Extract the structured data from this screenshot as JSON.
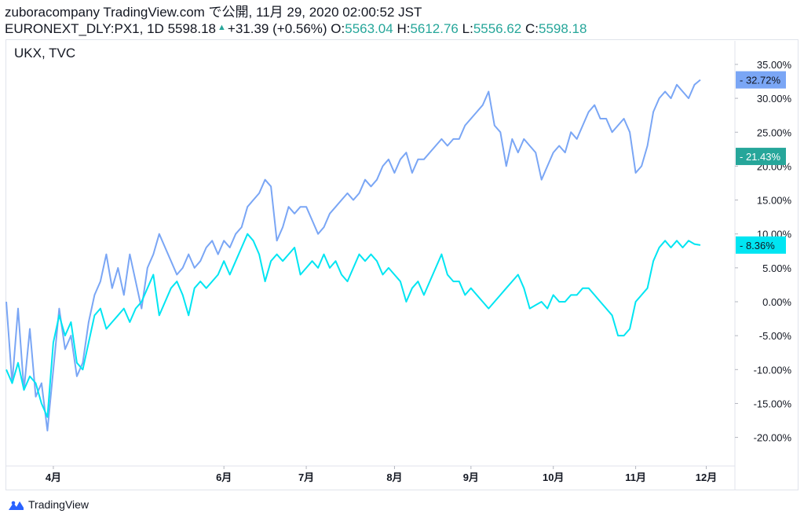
{
  "header": {
    "line1": "zuboracompany TradingView.com で公開, 11月 29, 2020 02:00:52 JST",
    "symbol": "EURONEXT_DLY:PX1, 1D",
    "last": "5598.18",
    "arrow": "▲",
    "change": "+31.39 (+0.56%)",
    "o_label": "O:",
    "o": "5563.04",
    "h_label": "H:",
    "h": "5612.76",
    "l_label": "L:",
    "l": "5556.62",
    "c_label": "C:",
    "c": "5598.18"
  },
  "compare_symbols": "UKX, TVC",
  "footer": {
    "brand": "TradingView"
  },
  "chart_data": {
    "type": "line",
    "ylabel_format": "percent",
    "ylim": [
      -23,
      38
    ],
    "y_ticks": [
      "35.00%",
      "30.00%",
      "25.00%",
      "20.00%",
      "15.00%",
      "10.00%",
      "5.00%",
      "0.00%",
      "-5.00%",
      "-10.00%",
      "-15.00%",
      "-20.00%"
    ],
    "x_ticks": [
      "4月",
      "6月",
      "7月",
      "8月",
      "9月",
      "10月",
      "11月",
      "12月"
    ],
    "grid": false,
    "series": [
      {
        "color": "#7aa6f5",
        "last_label": "32.72%",
        "points": [
          [
            1,
            0
          ],
          [
            2,
            -12
          ],
          [
            3,
            -1
          ],
          [
            4,
            -13
          ],
          [
            5,
            -4
          ],
          [
            6,
            -14
          ],
          [
            7,
            -12
          ],
          [
            8,
            -19
          ],
          [
            9,
            -10
          ],
          [
            10,
            -1
          ],
          [
            11,
            -7
          ],
          [
            12,
            -5
          ],
          [
            13,
            -11
          ],
          [
            14,
            -9
          ],
          [
            15,
            -3
          ],
          [
            16,
            1
          ],
          [
            17,
            3
          ],
          [
            18,
            7
          ],
          [
            19,
            2
          ],
          [
            20,
            5
          ],
          [
            21,
            1
          ],
          [
            22,
            7
          ],
          [
            23,
            3
          ],
          [
            24,
            -1
          ],
          [
            25,
            5
          ],
          [
            26,
            7
          ],
          [
            27,
            10
          ],
          [
            28,
            8
          ],
          [
            29,
            6
          ],
          [
            30,
            4
          ],
          [
            31,
            5
          ],
          [
            32,
            7
          ],
          [
            33,
            5
          ],
          [
            34,
            6
          ],
          [
            35,
            8
          ],
          [
            36,
            9
          ],
          [
            37,
            7
          ],
          [
            38,
            9
          ],
          [
            39,
            8
          ],
          [
            40,
            10
          ],
          [
            41,
            11
          ],
          [
            42,
            14
          ],
          [
            43,
            15
          ],
          [
            44,
            16
          ],
          [
            45,
            18
          ],
          [
            46,
            17
          ],
          [
            47,
            9
          ],
          [
            48,
            11
          ],
          [
            49,
            14
          ],
          [
            50,
            13
          ],
          [
            51,
            14
          ],
          [
            52,
            14
          ],
          [
            53,
            12
          ],
          [
            54,
            10
          ],
          [
            55,
            11
          ],
          [
            56,
            13
          ],
          [
            57,
            14
          ],
          [
            58,
            15
          ],
          [
            59,
            16
          ],
          [
            60,
            15
          ],
          [
            61,
            16
          ],
          [
            62,
            18
          ],
          [
            63,
            17
          ],
          [
            64,
            18
          ],
          [
            65,
            20
          ],
          [
            66,
            21
          ],
          [
            67,
            19
          ],
          [
            68,
            21
          ],
          [
            69,
            22
          ],
          [
            70,
            19
          ],
          [
            71,
            21
          ],
          [
            72,
            21
          ],
          [
            73,
            22
          ],
          [
            74,
            23
          ],
          [
            75,
            24
          ],
          [
            76,
            23
          ],
          [
            77,
            24
          ],
          [
            78,
            24
          ],
          [
            79,
            26
          ],
          [
            80,
            27
          ],
          [
            81,
            28
          ],
          [
            82,
            29
          ],
          [
            83,
            31
          ],
          [
            84,
            26
          ],
          [
            85,
            25
          ],
          [
            86,
            20
          ],
          [
            87,
            24
          ],
          [
            88,
            22
          ],
          [
            89,
            24
          ],
          [
            90,
            23
          ],
          [
            91,
            22
          ],
          [
            92,
            18
          ],
          [
            93,
            20
          ],
          [
            94,
            22
          ],
          [
            95,
            23
          ],
          [
            96,
            22
          ],
          [
            97,
            25
          ],
          [
            98,
            24
          ],
          [
            99,
            26
          ],
          [
            100,
            28
          ],
          [
            101,
            29
          ],
          [
            102,
            27
          ],
          [
            103,
            27
          ],
          [
            104,
            25
          ],
          [
            105,
            26
          ],
          [
            106,
            27
          ],
          [
            107,
            25
          ],
          [
            108,
            19
          ],
          [
            109,
            20
          ],
          [
            110,
            23
          ],
          [
            111,
            28
          ],
          [
            112,
            30
          ],
          [
            113,
            31
          ],
          [
            114,
            30
          ],
          [
            115,
            32
          ],
          [
            116,
            31
          ],
          [
            117,
            30
          ],
          [
            118,
            32
          ],
          [
            119,
            32.72
          ]
        ]
      },
      {
        "color": "#00e5f2",
        "last_label": "8.36%",
        "points": [
          [
            1,
            -10
          ],
          [
            2,
            -12
          ],
          [
            3,
            -9
          ],
          [
            4,
            -13
          ],
          [
            5,
            -11
          ],
          [
            6,
            -12
          ],
          [
            7,
            -15
          ],
          [
            8,
            -17
          ],
          [
            9,
            -6
          ],
          [
            10,
            -2
          ],
          [
            11,
            -5
          ],
          [
            12,
            -3
          ],
          [
            13,
            -9
          ],
          [
            14,
            -10
          ],
          [
            15,
            -6
          ],
          [
            16,
            -2
          ],
          [
            17,
            -1
          ],
          [
            18,
            -4
          ],
          [
            19,
            -3
          ],
          [
            20,
            -2
          ],
          [
            21,
            -1
          ],
          [
            22,
            -3
          ],
          [
            23,
            -1
          ],
          [
            24,
            0
          ],
          [
            25,
            2
          ],
          [
            26,
            4
          ],
          [
            27,
            -2
          ],
          [
            28,
            0
          ],
          [
            29,
            2
          ],
          [
            30,
            3
          ],
          [
            31,
            1
          ],
          [
            32,
            -2
          ],
          [
            33,
            2
          ],
          [
            34,
            3
          ],
          [
            35,
            2
          ],
          [
            36,
            3
          ],
          [
            37,
            4
          ],
          [
            38,
            6
          ],
          [
            39,
            4
          ],
          [
            40,
            6
          ],
          [
            41,
            8
          ],
          [
            42,
            10
          ],
          [
            43,
            9
          ],
          [
            44,
            7
          ],
          [
            45,
            3
          ],
          [
            46,
            6
          ],
          [
            47,
            7
          ],
          [
            48,
            6
          ],
          [
            49,
            7
          ],
          [
            50,
            8
          ],
          [
            51,
            4
          ],
          [
            52,
            5
          ],
          [
            53,
            6
          ],
          [
            54,
            5
          ],
          [
            55,
            7
          ],
          [
            56,
            5
          ],
          [
            57,
            6
          ],
          [
            58,
            4
          ],
          [
            59,
            3
          ],
          [
            60,
            5
          ],
          [
            61,
            7
          ],
          [
            62,
            6
          ],
          [
            63,
            7
          ],
          [
            64,
            6
          ],
          [
            65,
            4
          ],
          [
            66,
            5
          ],
          [
            67,
            4
          ],
          [
            68,
            3
          ],
          [
            69,
            0
          ],
          [
            70,
            2
          ],
          [
            71,
            3
          ],
          [
            72,
            1
          ],
          [
            73,
            3
          ],
          [
            74,
            5
          ],
          [
            75,
            7
          ],
          [
            76,
            4
          ],
          [
            77,
            3
          ],
          [
            78,
            3
          ],
          [
            79,
            1
          ],
          [
            80,
            2
          ],
          [
            81,
            1
          ],
          [
            82,
            0
          ],
          [
            83,
            -1
          ],
          [
            84,
            0
          ],
          [
            85,
            1
          ],
          [
            86,
            2
          ],
          [
            87,
            3
          ],
          [
            88,
            4
          ],
          [
            89,
            2
          ],
          [
            90,
            -1
          ],
          [
            91,
            -0.5
          ],
          [
            92,
            0
          ],
          [
            93,
            -1
          ],
          [
            94,
            1
          ],
          [
            95,
            0
          ],
          [
            96,
            0
          ],
          [
            97,
            1
          ],
          [
            98,
            1
          ],
          [
            99,
            2
          ],
          [
            100,
            2
          ],
          [
            101,
            1
          ],
          [
            102,
            0
          ],
          [
            103,
            -1
          ],
          [
            104,
            -2
          ],
          [
            105,
            -5
          ],
          [
            106,
            -5
          ],
          [
            107,
            -4
          ],
          [
            108,
            0
          ],
          [
            109,
            1
          ],
          [
            110,
            2
          ],
          [
            111,
            6
          ],
          [
            112,
            8
          ],
          [
            113,
            9
          ],
          [
            114,
            8
          ],
          [
            115,
            9
          ],
          [
            116,
            8
          ],
          [
            117,
            9
          ],
          [
            118,
            8.5
          ],
          [
            119,
            8.36
          ]
        ]
      },
      {
        "color": "#26a69a",
        "last_label": "21.43%",
        "points": []
      }
    ]
  }
}
